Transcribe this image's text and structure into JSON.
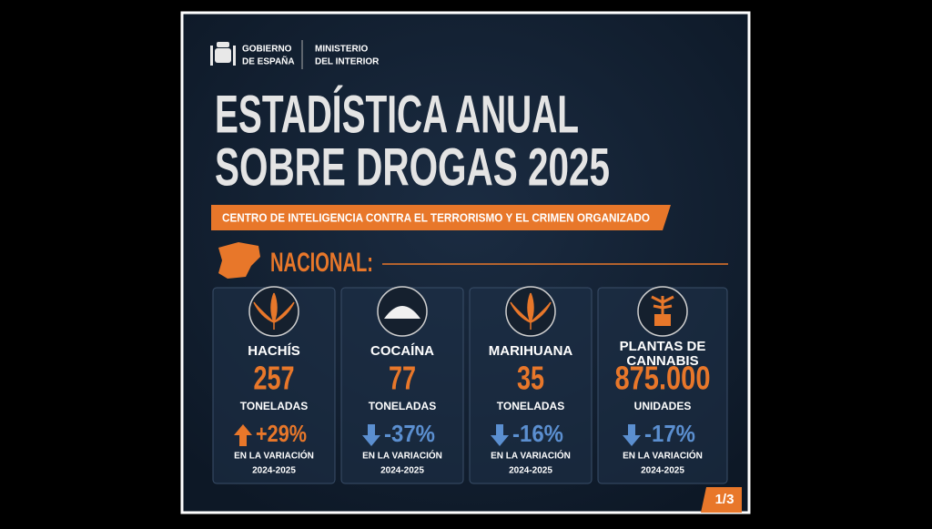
{
  "header": {
    "government": [
      "GOBIERNO",
      "DE ESPAÑA"
    ],
    "ministry": [
      "MINISTERIO",
      "DEL INTERIOR"
    ]
  },
  "title": [
    "ESTADÍSTICA ANUAL",
    "SOBRE DROGAS 2025"
  ],
  "subtitle": "CENTRO DE INTELIGENCIA CONTRA EL TERRORISMO Y EL CRIMEN ORGANIZADO",
  "section": "NACIONAL:",
  "cards": [
    {
      "name": [
        "HACHÍS"
      ],
      "amount": "257",
      "unit": "TONELADAS",
      "change": "+29%",
      "note": [
        "EN LA VARIACIÓN",
        "2024-2025"
      ]
    },
    {
      "name": [
        "COCAÍNA"
      ],
      "amount": "77",
      "unit": "TONELADAS",
      "change": "-37%",
      "note": [
        "EN LA VARIACIÓN",
        "2024-2025"
      ]
    },
    {
      "name": [
        "MARIHUANA"
      ],
      "amount": "35",
      "unit": "TONELADAS",
      "change": "-16%",
      "note": [
        "EN LA VARIACIÓN",
        "2024-2025"
      ]
    },
    {
      "name": [
        "PLANTAS DE",
        "CANNABIS"
      ],
      "amount": "875.000",
      "unit": "UNIDADES",
      "change": "-17%",
      "note": [
        "EN LA VARIACIÓN",
        "2024-2025"
      ]
    }
  ],
  "page": "1/3"
}
